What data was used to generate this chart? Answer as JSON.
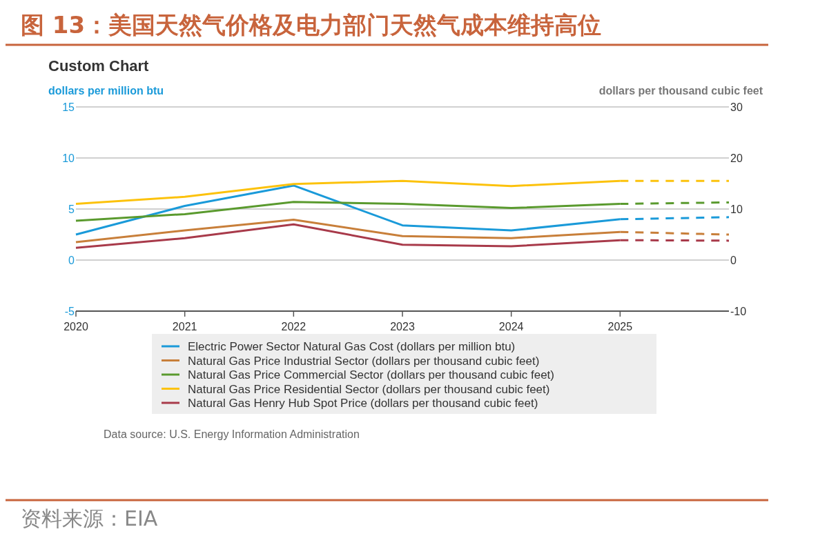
{
  "chart_data": {
    "type": "line",
    "title": "图 13：美国天然气价格及电力部门天然气成本维持高位",
    "subtitle": "Custom Chart",
    "ylabel": "dollars per million btu",
    "y2label": "dollars per thousand cubic feet",
    "annotations": [
      "Data source: U.S. Energy Information Administration",
      "资料来源：EIA"
    ],
    "xlim": [
      2020,
      2026
    ],
    "xticks": [
      2020,
      2021,
      2022,
      2023,
      2024,
      2025
    ],
    "ylim": [
      -5,
      15
    ],
    "yticks": [
      -5,
      0,
      5,
      10,
      15
    ],
    "y2lim": [
      -10,
      30
    ],
    "y2ticks": [
      -10,
      0,
      10,
      20,
      30
    ],
    "grid": "y",
    "legend": "bottom",
    "marker": "none",
    "series": [
      {
        "name": "Electric Power Sector Natural Gas Cost (dollars per million btu)",
        "color": "#1a9ad9",
        "x": [
          2020,
          2021,
          2022,
          2023,
          2024,
          2025
        ],
        "values": [
          2.5,
          5.3,
          7.3,
          3.4,
          2.9,
          4.0
        ],
        "line_style": "solid"
      },
      {
        "name": "Natural Gas Price Industrial Sector (dollars per thousand cubic feet)",
        "color": "#c87f3a",
        "axis": "y2",
        "x": [
          2020,
          2021,
          2022,
          2023,
          2024,
          2025
        ],
        "values": [
          3.5,
          5.8,
          7.9,
          4.7,
          4.3,
          5.5
        ],
        "line_style": "solid"
      },
      {
        "name": "Natural Gas Price Commercial Sector (dollars per thousand cubic feet)",
        "color": "#5a9a2e",
        "axis": "y2",
        "x": [
          2020,
          2021,
          2022,
          2023,
          2024,
          2025
        ],
        "values": [
          7.7,
          9.0,
          11.4,
          11.0,
          10.2,
          11.0
        ],
        "line_style": "solid"
      },
      {
        "name": "Natural Gas Price Residential Sector (dollars per thousand cubic feet)",
        "color": "#fcc20c",
        "axis": "y2",
        "x": [
          2020,
          2021,
          2022,
          2023,
          2024,
          2025
        ],
        "values": [
          11.0,
          12.4,
          14.9,
          15.5,
          14.5,
          15.5
        ],
        "line_style": "solid"
      },
      {
        "name": "Natural Gas Henry Hub Spot Price (dollars per thousand cubic feet)",
        "color": "#a83a4a",
        "axis": "y2",
        "x": [
          2020,
          2021,
          2022,
          2023,
          2024,
          2025
        ],
        "values": [
          2.4,
          4.3,
          7.0,
          3.0,
          2.7,
          3.9
        ],
        "line_style": "solid"
      },
      {
        "color": "#1a9ad9",
        "x": [
          2025,
          2026
        ],
        "values": [
          4.0,
          4.2
        ],
        "line_style": "dashed"
      },
      {
        "color": "#c87f3a",
        "axis": "y2",
        "x": [
          2025,
          2026
        ],
        "values": [
          5.5,
          5.0
        ],
        "line_style": "dashed"
      },
      {
        "color": "#5a9a2e",
        "axis": "y2",
        "x": [
          2025,
          2026
        ],
        "values": [
          11.0,
          11.3
        ],
        "line_style": "dashed"
      },
      {
        "color": "#fcc20c",
        "axis": "y2",
        "x": [
          2025,
          2026
        ],
        "values": [
          15.5,
          15.5
        ],
        "line_style": "dashed"
      },
      {
        "color": "#a83a4a",
        "axis": "y2",
        "x": [
          2025,
          2026
        ],
        "values": [
          3.9,
          3.8
        ],
        "line_style": "dashed"
      }
    ]
  }
}
